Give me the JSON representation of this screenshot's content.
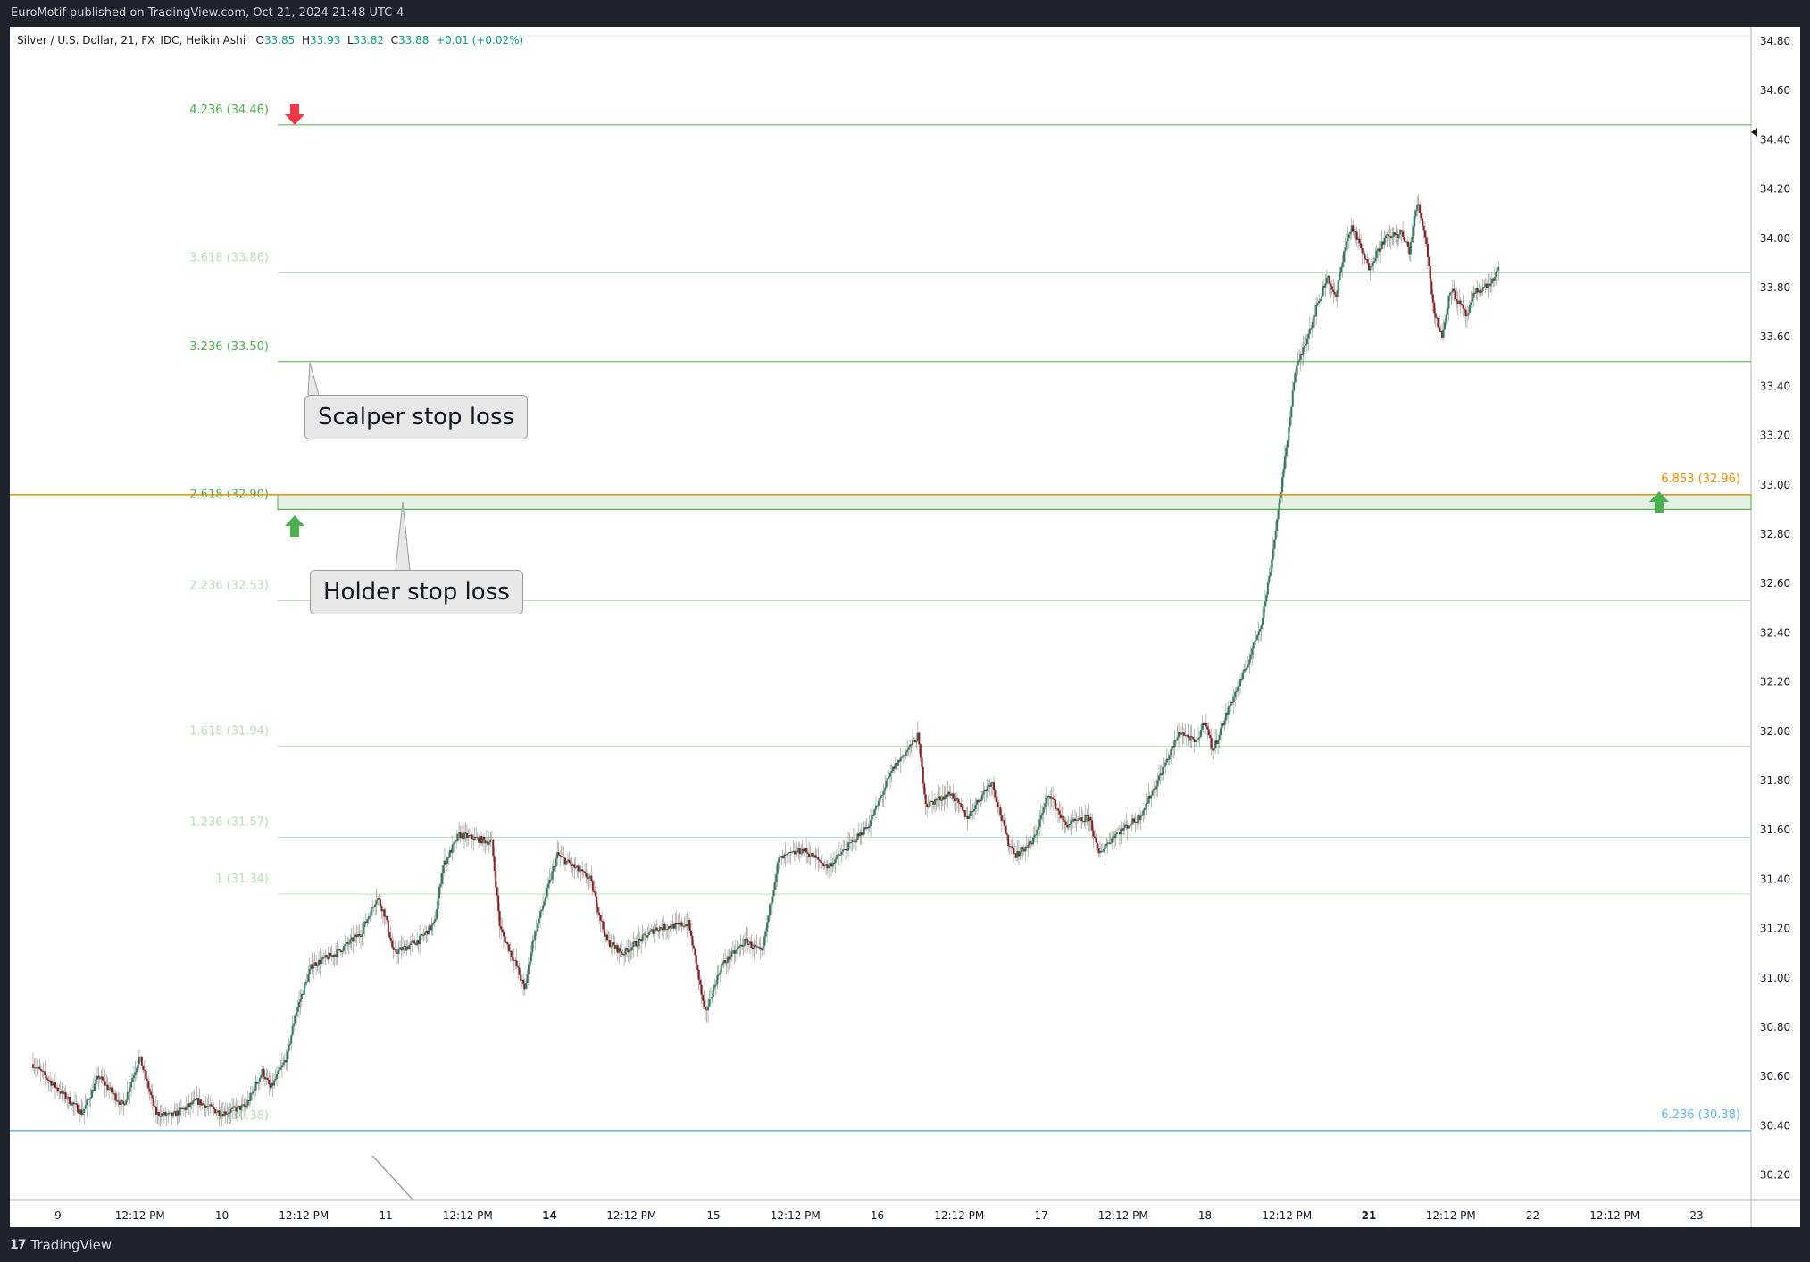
{
  "header": {
    "published_by": "EuroMotif published on TradingView.com, Oct 21, 2024 21:48 UTC-4"
  },
  "footer": {
    "logo_mark": "17",
    "brand": "TradingView"
  },
  "legend": {
    "symbol": "Silver / U.S. Dollar, 21, FX_IDC, Heikin Ashi",
    "o_label": "O",
    "o_value": "33.85",
    "h_label": "H",
    "h_value": "33.93",
    "l_label": "L",
    "l_value": "33.82",
    "c_label": "C",
    "c_value": "33.88",
    "change": "+0.01 (+0.02%)"
  },
  "annotations": {
    "scalper": "Scalper stop loss",
    "holder": "Holder stop loss"
  },
  "colors": {
    "up_candle": "#2e7d5b",
    "down_candle": "#8b1d1d",
    "fib_strong": "#4caf50",
    "fib_faint": "#b7dfb9",
    "orange_level": "#ef8c00",
    "blue_level": "#64b5f6",
    "arrow_up": "#4caf50",
    "arrow_down": "#f23645"
  },
  "chart_data": {
    "type": "candlestick",
    "title": "Silver / U.S. Dollar, 21, FX_IDC, Heikin Ashi",
    "y_ticks": [
      "34.80",
      "34.60",
      "34.40",
      "34.20",
      "34.00",
      "33.80",
      "33.60",
      "33.40",
      "33.20",
      "33.00",
      "32.80",
      "32.60",
      "32.40",
      "32.20",
      "32.00",
      "31.80",
      "31.60",
      "31.40",
      "31.20",
      "31.00",
      "30.80",
      "30.60",
      "30.40",
      "30.20"
    ],
    "ylim": [
      30.14,
      34.86
    ],
    "x_ticks": [
      {
        "label": "9",
        "bold": false
      },
      {
        "label": "12:12 PM",
        "bold": false
      },
      {
        "label": "10",
        "bold": false
      },
      {
        "label": "12:12 PM",
        "bold": false
      },
      {
        "label": "11",
        "bold": false
      },
      {
        "label": "12:12 PM",
        "bold": false
      },
      {
        "label": "14",
        "bold": true
      },
      {
        "label": "12:12 PM",
        "bold": false
      },
      {
        "label": "15",
        "bold": false
      },
      {
        "label": "12:12 PM",
        "bold": false
      },
      {
        "label": "16",
        "bold": false
      },
      {
        "label": "12:12 PM",
        "bold": false
      },
      {
        "label": "17",
        "bold": false
      },
      {
        "label": "12:12 PM",
        "bold": false
      },
      {
        "label": "18",
        "bold": false
      },
      {
        "label": "12:12 PM",
        "bold": false
      },
      {
        "label": "21",
        "bold": true
      },
      {
        "label": "12:12 PM",
        "bold": false
      },
      {
        "label": "22",
        "bold": false
      },
      {
        "label": "12:12 PM",
        "bold": false
      },
      {
        "label": "23",
        "bold": false
      }
    ],
    "fib_levels": [
      {
        "label": "4.236 (34.46)",
        "value": 34.46,
        "style": "strong"
      },
      {
        "label": "3.618 (33.86)",
        "value": 33.86,
        "style": "faint"
      },
      {
        "label": "3.236 (33.50)",
        "value": 33.5,
        "style": "strong"
      },
      {
        "label": "2.618 (32.90)",
        "value": 32.9,
        "style": "strong"
      },
      {
        "label": "2.236 (32.53)",
        "value": 32.53,
        "style": "faint"
      },
      {
        "label": "1.618 (31.94)",
        "value": 31.94,
        "style": "faint"
      },
      {
        "label": "1.236 (31.57)",
        "value": 31.57,
        "style": "faint"
      },
      {
        "label": "1 (31.34)",
        "value": 31.34,
        "style": "faint"
      },
      {
        "label": "0 (30.38)",
        "value": 30.38,
        "style": "faint"
      }
    ],
    "zone": {
      "low": 32.9,
      "high": 32.96
    },
    "right_levels": [
      {
        "label": "6.853 (32.96)",
        "value": 32.96,
        "color": "orange"
      },
      {
        "label": "6.236 (30.38)",
        "value": 30.38,
        "color": "blue"
      }
    ],
    "price_path": [
      {
        "day": 0.0,
        "p": 30.65
      },
      {
        "day": 0.15,
        "p": 30.55
      },
      {
        "day": 0.3,
        "p": 30.45
      },
      {
        "day": 0.4,
        "p": 30.6
      },
      {
        "day": 0.55,
        "p": 30.48
      },
      {
        "day": 0.65,
        "p": 30.68
      },
      {
        "day": 0.75,
        "p": 30.45
      },
      {
        "day": 0.85,
        "p": 30.44
      },
      {
        "day": 1.0,
        "p": 30.5
      },
      {
        "day": 1.15,
        "p": 30.45
      },
      {
        "day": 1.3,
        "p": 30.48
      },
      {
        "day": 1.4,
        "p": 30.62
      },
      {
        "day": 1.45,
        "p": 30.55
      },
      {
        "day": 1.55,
        "p": 30.68
      },
      {
        "day": 1.6,
        "p": 30.85
      },
      {
        "day": 1.7,
        "p": 31.05
      },
      {
        "day": 1.85,
        "p": 31.1
      },
      {
        "day": 2.0,
        "p": 31.18
      },
      {
        "day": 2.1,
        "p": 31.33
      },
      {
        "day": 2.15,
        "p": 31.25
      },
      {
        "day": 2.2,
        "p": 31.1
      },
      {
        "day": 2.35,
        "p": 31.15
      },
      {
        "day": 2.45,
        "p": 31.22
      },
      {
        "day": 2.5,
        "p": 31.45
      },
      {
        "day": 2.6,
        "p": 31.58
      },
      {
        "day": 2.8,
        "p": 31.55
      },
      {
        "day": 2.85,
        "p": 31.2
      },
      {
        "day": 2.95,
        "p": 31.05
      },
      {
        "day": 3.0,
        "p": 30.95
      },
      {
        "day": 3.05,
        "p": 31.15
      },
      {
        "day": 3.2,
        "p": 31.5
      },
      {
        "day": 3.3,
        "p": 31.45
      },
      {
        "day": 3.4,
        "p": 31.4
      },
      {
        "day": 3.5,
        "p": 31.15
      },
      {
        "day": 3.6,
        "p": 31.1
      },
      {
        "day": 3.8,
        "p": 31.2
      },
      {
        "day": 4.0,
        "p": 31.22
      },
      {
        "day": 4.05,
        "p": 31.05
      },
      {
        "day": 4.1,
        "p": 30.85
      },
      {
        "day": 4.2,
        "p": 31.05
      },
      {
        "day": 4.35,
        "p": 31.15
      },
      {
        "day": 4.45,
        "p": 31.1
      },
      {
        "day": 4.5,
        "p": 31.3
      },
      {
        "day": 4.55,
        "p": 31.48
      },
      {
        "day": 4.7,
        "p": 31.52
      },
      {
        "day": 4.85,
        "p": 31.45
      },
      {
        "day": 5.0,
        "p": 31.55
      },
      {
        "day": 5.1,
        "p": 31.62
      },
      {
        "day": 5.25,
        "p": 31.85
      },
      {
        "day": 5.4,
        "p": 31.98
      },
      {
        "day": 5.45,
        "p": 31.7
      },
      {
        "day": 5.6,
        "p": 31.75
      },
      {
        "day": 5.7,
        "p": 31.65
      },
      {
        "day": 5.85,
        "p": 31.8
      },
      {
        "day": 5.95,
        "p": 31.55
      },
      {
        "day": 6.0,
        "p": 31.5
      },
      {
        "day": 6.1,
        "p": 31.55
      },
      {
        "day": 6.2,
        "p": 31.75
      },
      {
        "day": 6.3,
        "p": 31.62
      },
      {
        "day": 6.45,
        "p": 31.65
      },
      {
        "day": 6.5,
        "p": 31.5
      },
      {
        "day": 6.6,
        "p": 31.58
      },
      {
        "day": 6.75,
        "p": 31.65
      },
      {
        "day": 6.85,
        "p": 31.78
      },
      {
        "day": 7.0,
        "p": 32.0
      },
      {
        "day": 7.1,
        "p": 31.95
      },
      {
        "day": 7.15,
        "p": 32.05
      },
      {
        "day": 7.2,
        "p": 31.92
      },
      {
        "day": 7.3,
        "p": 32.1
      },
      {
        "day": 7.4,
        "p": 32.25
      },
      {
        "day": 7.5,
        "p": 32.45
      },
      {
        "day": 7.55,
        "p": 32.65
      },
      {
        "day": 7.6,
        "p": 32.9
      },
      {
        "day": 7.65,
        "p": 33.15
      },
      {
        "day": 7.7,
        "p": 33.45
      },
      {
        "day": 7.8,
        "p": 33.65
      },
      {
        "day": 7.9,
        "p": 33.85
      },
      {
        "day": 7.95,
        "p": 33.75
      },
      {
        "day": 8.0,
        "p": 33.95
      },
      {
        "day": 8.05,
        "p": 34.05
      },
      {
        "day": 8.15,
        "p": 33.88
      },
      {
        "day": 8.25,
        "p": 34.0
      },
      {
        "day": 8.35,
        "p": 34.02
      },
      {
        "day": 8.4,
        "p": 33.95
      },
      {
        "day": 8.45,
        "p": 34.15
      },
      {
        "day": 8.5,
        "p": 34.0
      },
      {
        "day": 8.55,
        "p": 33.7
      },
      {
        "day": 8.6,
        "p": 33.6
      },
      {
        "day": 8.65,
        "p": 33.8
      },
      {
        "day": 8.75,
        "p": 33.68
      },
      {
        "day": 8.8,
        "p": 33.78
      },
      {
        "day": 8.9,
        "p": 33.82
      },
      {
        "day": 8.95,
        "p": 33.88
      }
    ],
    "xlabel": "",
    "ylabel": ""
  }
}
